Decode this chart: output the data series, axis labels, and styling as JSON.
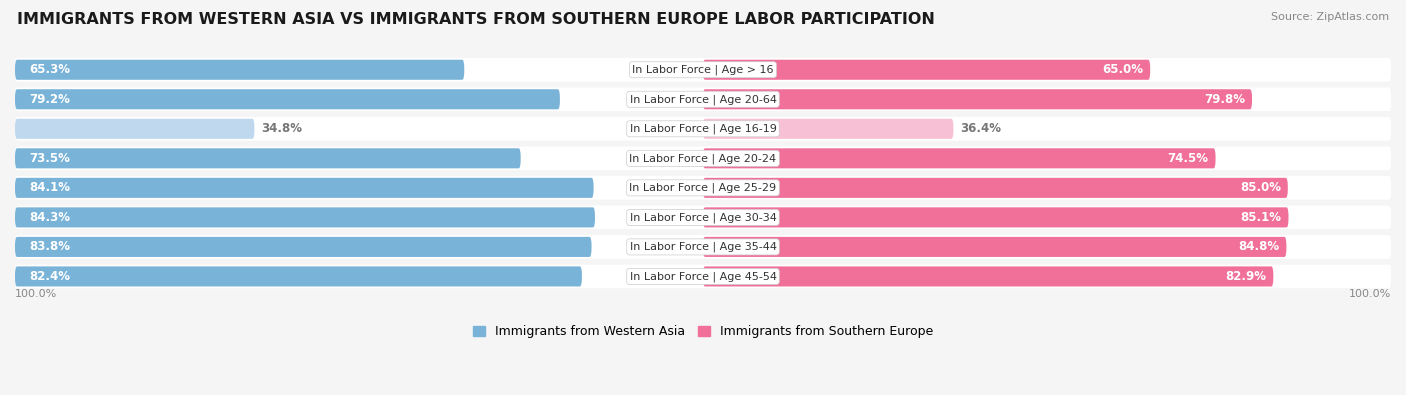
{
  "title": "IMMIGRANTS FROM WESTERN ASIA VS IMMIGRANTS FROM SOUTHERN EUROPE LABOR PARTICIPATION",
  "source": "Source: ZipAtlas.com",
  "categories": [
    "In Labor Force | Age > 16",
    "In Labor Force | Age 20-64",
    "In Labor Force | Age 16-19",
    "In Labor Force | Age 20-24",
    "In Labor Force | Age 25-29",
    "In Labor Force | Age 30-34",
    "In Labor Force | Age 35-44",
    "In Labor Force | Age 45-54"
  ],
  "western_asia": [
    65.3,
    79.2,
    34.8,
    73.5,
    84.1,
    84.3,
    83.8,
    82.4
  ],
  "southern_europe": [
    65.0,
    79.8,
    36.4,
    74.5,
    85.0,
    85.1,
    84.8,
    82.9
  ],
  "color_western": "#7ab3d8",
  "color_southern": "#f0709a",
  "color_western_light": "#c0d8ee",
  "color_southern_light": "#f8c0d4",
  "row_bg": "#ebebeb",
  "fig_bg": "#f5f5f5",
  "legend_western": "Immigrants from Western Asia",
  "legend_southern": "Immigrants from Southern Europe",
  "title_fontsize": 11.5,
  "label_fontsize": 8.5,
  "cat_fontsize": 8.0
}
